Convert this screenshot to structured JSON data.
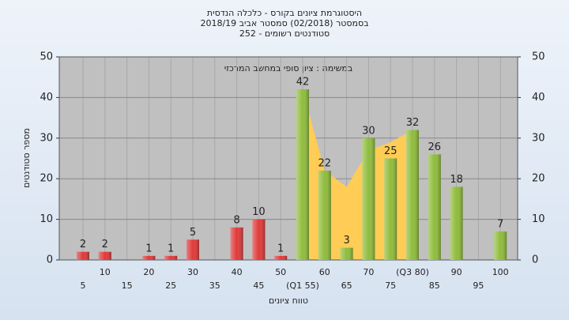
{
  "chart_data": {
    "type": "bar",
    "title": "היסטוגרמת ציונים בקורס - כלכלה הנדסית",
    "subtitle": [
      "בסמסטר  (02/2018)  סמסטר אביב 2018/19",
      "סטודנטים רשומים - 252"
    ],
    "annotation": "במשימה : ציון סופי במחשב המרכזי",
    "ylabel": "מספר סטודנטים",
    "xlabel": "טווח ציונים",
    "categories": [
      "5",
      "10",
      "15",
      "20",
      "25",
      "30",
      "35",
      "40",
      "45",
      "50",
      "(Q1 55)",
      "60",
      "65",
      "70",
      "75",
      "(Q3 80)",
      "85",
      "90",
      "95",
      "100"
    ],
    "values": [
      2,
      2,
      null,
      1,
      1,
      5,
      null,
      8,
      10,
      1,
      42,
      22,
      3,
      30,
      25,
      32,
      26,
      18,
      null,
      7
    ],
    "colors": [
      "#e03a3a",
      "#e03a3a",
      "#e03a3a",
      "#e03a3a",
      "#e03a3a",
      "#e03a3a",
      "#e03a3a",
      "#e03a3a",
      "#e03a3a",
      "#e03a3a",
      "#8fbc3c",
      "#8fbc3c",
      "#8fbc3c",
      "#8fbc3c",
      "#8fbc3c",
      "#8fbc3c",
      "#8fbc3c",
      "#8fbc3c",
      "#8fbc3c",
      "#8fbc3c"
    ],
    "area": {
      "color": "#ffcc55",
      "values": [
        null,
        null,
        null,
        null,
        null,
        null,
        null,
        null,
        null,
        null,
        42,
        22,
        18,
        27,
        29,
        32,
        null,
        null,
        null,
        null
      ]
    },
    "ylim": [
      0,
      50
    ],
    "yticks": [
      0,
      10,
      20,
      30,
      40,
      50
    ],
    "grid": true
  }
}
